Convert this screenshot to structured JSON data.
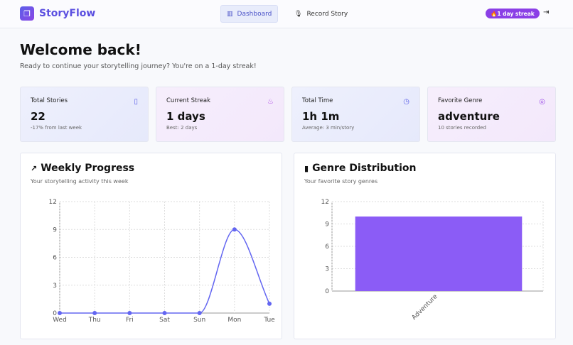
{
  "header": {
    "app_name": "StoryFlow",
    "nav": [
      {
        "label": "Dashboard",
        "active": true
      },
      {
        "label": "Record Story",
        "active": false
      }
    ],
    "streak_badge": "🔥1 day streak"
  },
  "welcome": {
    "title": "Welcome back!",
    "subtitle": "Ready to continue your storytelling journey? You're on a 1-day streak!"
  },
  "stats": [
    {
      "label": "Total Stories",
      "value": "22",
      "note": "-17% from last week",
      "icon": "book-icon",
      "icon_glyph": "▯",
      "color": "#5b5fe8"
    },
    {
      "label": "Current Streak",
      "value": "1 days",
      "note": "Best: 2 days",
      "icon": "flame-icon",
      "icon_glyph": "♨",
      "color": "#b04be6"
    },
    {
      "label": "Total Time",
      "value": "1h 1m",
      "note": "Average: 3 min/story",
      "icon": "clock-icon",
      "icon_glyph": "◷",
      "color": "#5b5fe8"
    },
    {
      "label": "Favorite Genre",
      "value": "adventure",
      "note": "10 stories recorded",
      "icon": "target-icon",
      "icon_glyph": "◎",
      "color": "#9b4be6"
    }
  ],
  "weekly": {
    "title": "Weekly Progress",
    "subtitle": "Your storytelling activity this week"
  },
  "genre": {
    "title": "Genre Distribution",
    "subtitle": "Your favorite story genres"
  },
  "chart_data": [
    {
      "type": "line",
      "categories": [
        "Wed",
        "Thu",
        "Fri",
        "Sat",
        "Sun",
        "Mon",
        "Tue"
      ],
      "values": [
        0,
        0,
        0,
        0,
        0,
        9,
        1
      ],
      "ylim": [
        0,
        12
      ],
      "yticks": [
        0,
        3,
        6,
        9,
        12
      ],
      "grid": true,
      "color": "#6366f1"
    },
    {
      "type": "bar",
      "categories": [
        "Adventure"
      ],
      "values": [
        10
      ],
      "ylim": [
        0,
        12
      ],
      "yticks": [
        0,
        3,
        6,
        9,
        12
      ],
      "grid": true,
      "color": "#8b5cf6"
    }
  ]
}
